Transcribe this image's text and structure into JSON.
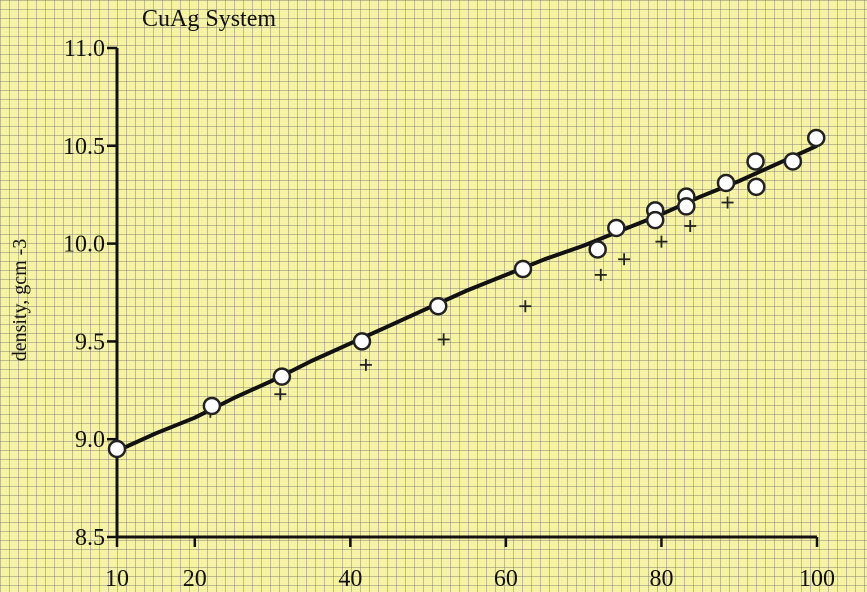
{
  "chart_data": {
    "type": "scatter",
    "title": "CuAg System",
    "xlabel": "",
    "ylabel": "density, gcm -3",
    "xlim": [
      10,
      100
    ],
    "ylim": [
      8.5,
      11.0
    ],
    "x_ticks": [
      10,
      20,
      40,
      60,
      80,
      100
    ],
    "y_ticks": [
      8.5,
      9.0,
      9.5,
      10.0,
      10.5,
      11.0
    ],
    "x_tick_labels": [
      "10",
      "20",
      "40",
      "60",
      "80",
      "100"
    ],
    "y_tick_labels": [
      "8.5",
      "9.0",
      "9.5",
      "10.0",
      "10.5",
      "11.0"
    ],
    "grid": false,
    "series": [
      {
        "marker": "circle",
        "x": [
          10,
          22.2,
          31.2,
          41.5,
          51.3,
          62.2,
          71.8,
          74.2,
          79.2,
          79.2,
          83.2,
          83.2,
          88.3,
          92.1,
          92.2,
          96.9,
          99.9
        ],
        "y": [
          8.95,
          9.17,
          9.32,
          9.5,
          9.68,
          9.87,
          9.97,
          10.08,
          10.17,
          10.12,
          10.24,
          10.19,
          10.31,
          10.42,
          10.29,
          10.42,
          10.54
        ]
      },
      {
        "marker": "cross",
        "x": [
          22.0,
          31.0,
          42.0,
          52.0,
          62.5,
          72.2,
          75.2,
          80.0,
          83.7,
          88.5,
          92.3
        ],
        "y": [
          9.14,
          9.23,
          9.38,
          9.51,
          9.68,
          9.84,
          9.92,
          10.01,
          10.09,
          10.21,
          10.3
        ]
      },
      {
        "marker": "line",
        "x": [
          10,
          15,
          20,
          25,
          30,
          35,
          40,
          45,
          50,
          55,
          60,
          65,
          70,
          75,
          80,
          85,
          90,
          95,
          100
        ],
        "y": [
          8.94,
          9.03,
          9.11,
          9.21,
          9.3,
          9.4,
          9.49,
          9.58,
          9.67,
          9.76,
          9.84,
          9.92,
          9.99,
          10.07,
          10.15,
          10.24,
          10.32,
          10.41,
          10.5
        ]
      }
    ],
    "colors": {
      "background": "#f7f3a4",
      "ink": "#111111",
      "marker_fill": "#ffffff"
    }
  }
}
